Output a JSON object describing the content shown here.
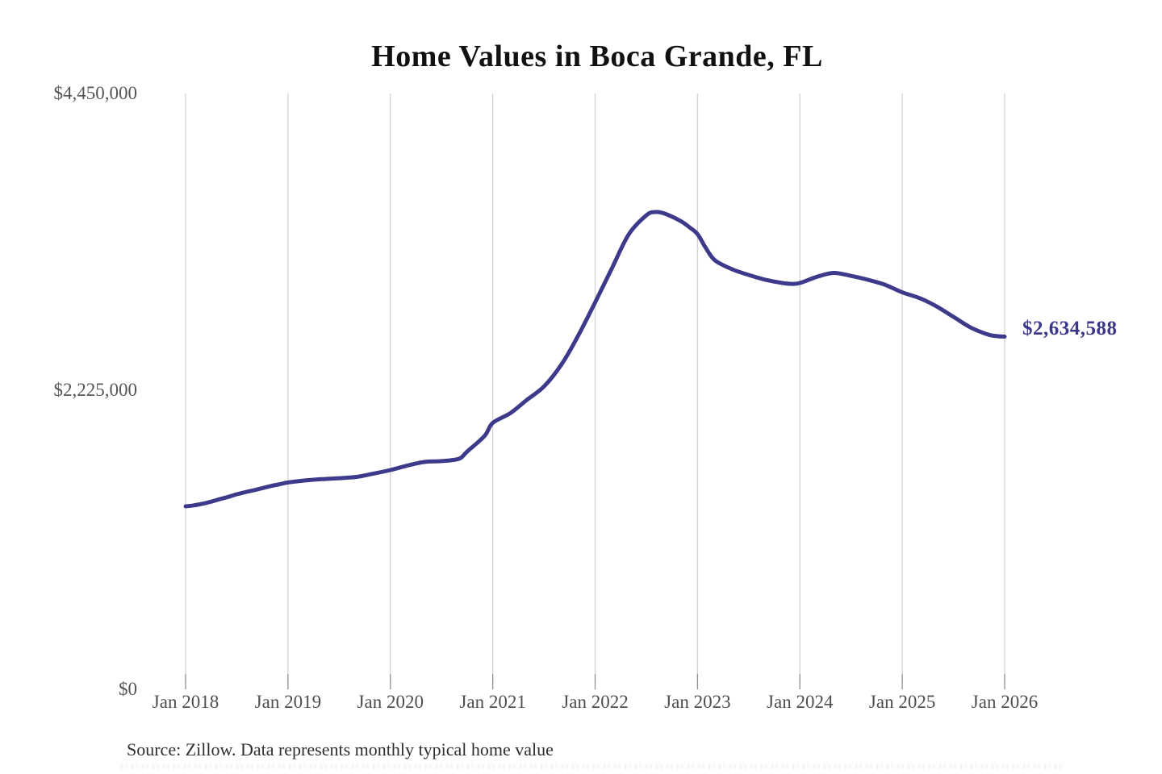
{
  "title": "Home Values in Boca Grande, FL",
  "source_note": "Source: Zillow. Data represents monthly typical home value",
  "colors": {
    "line": "#3d3a8b",
    "end_label": "#3b3889",
    "gridline": "#d2d2d2",
    "tick": "#8f8f8f",
    "title": "#111111",
    "axis_label": "#4f4f4f",
    "background": "#ffffff"
  },
  "chart_data": {
    "type": "line",
    "title": "Home Values in Boca Grande, FL",
    "xlabel": "",
    "ylabel": "",
    "xlim": [
      2018.0,
      2026.0
    ],
    "ylim": [
      0,
      4450000
    ],
    "grid": "vertical-only",
    "legend": "none",
    "x_unit": "year (Jan = .0)",
    "x_ticks": [
      {
        "label": "Jan 2018",
        "value": 2018
      },
      {
        "label": "Jan 2019",
        "value": 2019
      },
      {
        "label": "Jan 2020",
        "value": 2020
      },
      {
        "label": "Jan 2021",
        "value": 2021
      },
      {
        "label": "Jan 2022",
        "value": 2022
      },
      {
        "label": "Jan 2023",
        "value": 2023
      },
      {
        "label": "Jan 2024",
        "value": 2024
      },
      {
        "label": "Jan 2025",
        "value": 2025
      },
      {
        "label": "Jan 2026",
        "value": 2026
      }
    ],
    "y_ticks": [
      {
        "label": "$0",
        "value": 0
      },
      {
        "label": "$2,225,000",
        "value": 2225000
      },
      {
        "label": "$4,450,000",
        "value": 4450000
      }
    ],
    "end_label": "$2,634,588",
    "end_value": 2634588,
    "series": [
      {
        "name": "Monthly typical home value",
        "points": [
          [
            2018.0,
            1367000
          ],
          [
            2018.08,
            1374000
          ],
          [
            2018.17,
            1387000
          ],
          [
            2018.25,
            1402000
          ],
          [
            2018.33,
            1420000
          ],
          [
            2018.42,
            1438000
          ],
          [
            2018.5,
            1457000
          ],
          [
            2018.58,
            1472000
          ],
          [
            2018.67,
            1488000
          ],
          [
            2018.75,
            1503000
          ],
          [
            2018.83,
            1518000
          ],
          [
            2018.92,
            1532000
          ],
          [
            2019.0,
            1545000
          ],
          [
            2019.17,
            1560000
          ],
          [
            2019.33,
            1570000
          ],
          [
            2019.5,
            1577000
          ],
          [
            2019.67,
            1587000
          ],
          [
            2019.83,
            1610000
          ],
          [
            2020.0,
            1638000
          ],
          [
            2020.17,
            1672000
          ],
          [
            2020.33,
            1698000
          ],
          [
            2020.5,
            1705000
          ],
          [
            2020.67,
            1722000
          ],
          [
            2020.75,
            1776000
          ],
          [
            2020.92,
            1893000
          ],
          [
            2021.0,
            1990000
          ],
          [
            2021.17,
            2062000
          ],
          [
            2021.33,
            2160000
          ],
          [
            2021.5,
            2262000
          ],
          [
            2021.67,
            2425000
          ],
          [
            2021.83,
            2635000
          ],
          [
            2022.0,
            2890000
          ],
          [
            2022.17,
            3155000
          ],
          [
            2022.33,
            3400000
          ],
          [
            2022.5,
            3540000
          ],
          [
            2022.58,
            3565000
          ],
          [
            2022.67,
            3556000
          ],
          [
            2022.83,
            3500000
          ],
          [
            2022.92,
            3452000
          ],
          [
            2023.0,
            3400000
          ],
          [
            2023.08,
            3298000
          ],
          [
            2023.17,
            3205000
          ],
          [
            2023.33,
            3140000
          ],
          [
            2023.5,
            3095000
          ],
          [
            2023.67,
            3058000
          ],
          [
            2023.83,
            3035000
          ],
          [
            2023.92,
            3028000
          ],
          [
            2024.0,
            3035000
          ],
          [
            2024.17,
            3082000
          ],
          [
            2024.33,
            3110000
          ],
          [
            2024.5,
            3088000
          ],
          [
            2024.67,
            3058000
          ],
          [
            2024.83,
            3022000
          ],
          [
            2025.0,
            2965000
          ],
          [
            2025.17,
            2922000
          ],
          [
            2025.33,
            2862000
          ],
          [
            2025.5,
            2782000
          ],
          [
            2025.67,
            2702000
          ],
          [
            2025.83,
            2652000
          ],
          [
            2025.92,
            2638000
          ],
          [
            2026.0,
            2634588
          ]
        ]
      }
    ]
  }
}
